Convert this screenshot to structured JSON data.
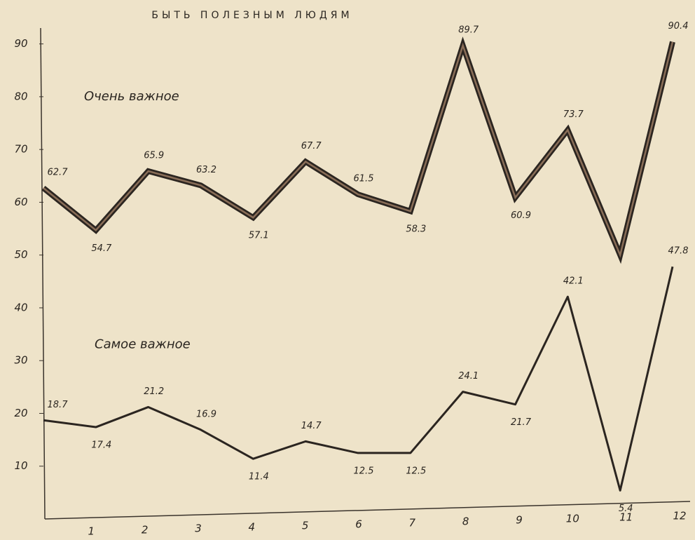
{
  "chart_data": {
    "type": "line",
    "title": "БЫТЬ ПОЛЕЗНЫМ ЛЮДЯМ",
    "categories": [
      null,
      "1",
      "2",
      "3",
      "4",
      "5",
      "6",
      "7",
      "8",
      "9",
      "10",
      "11",
      "12"
    ],
    "series": [
      {
        "name": "Очень важное",
        "color": "#2b2520",
        "values": [
          62.7,
          54.7,
          65.9,
          63.2,
          57.1,
          67.7,
          61.5,
          58.3,
          89.7,
          60.9,
          73.7,
          50,
          90.4
        ],
        "value_labels": [
          "62.7",
          "54.7",
          "65.9",
          "63.2",
          "57.1",
          "67.7",
          "61.5",
          "58.3",
          "89.7",
          "60.9",
          "73.7",
          null,
          "90.4"
        ]
      },
      {
        "name": "Самое важное",
        "color": "#2b2520",
        "values": [
          18.7,
          17.4,
          21.2,
          16.9,
          11.4,
          14.7,
          12.5,
          12.5,
          24.1,
          21.7,
          42.1,
          5.4,
          47.8
        ]
      }
    ],
    "ylim": [
      0,
      95
    ],
    "yticks": [
      10,
      20,
      30,
      40,
      50,
      60,
      70,
      80,
      90
    ],
    "grid": false
  }
}
